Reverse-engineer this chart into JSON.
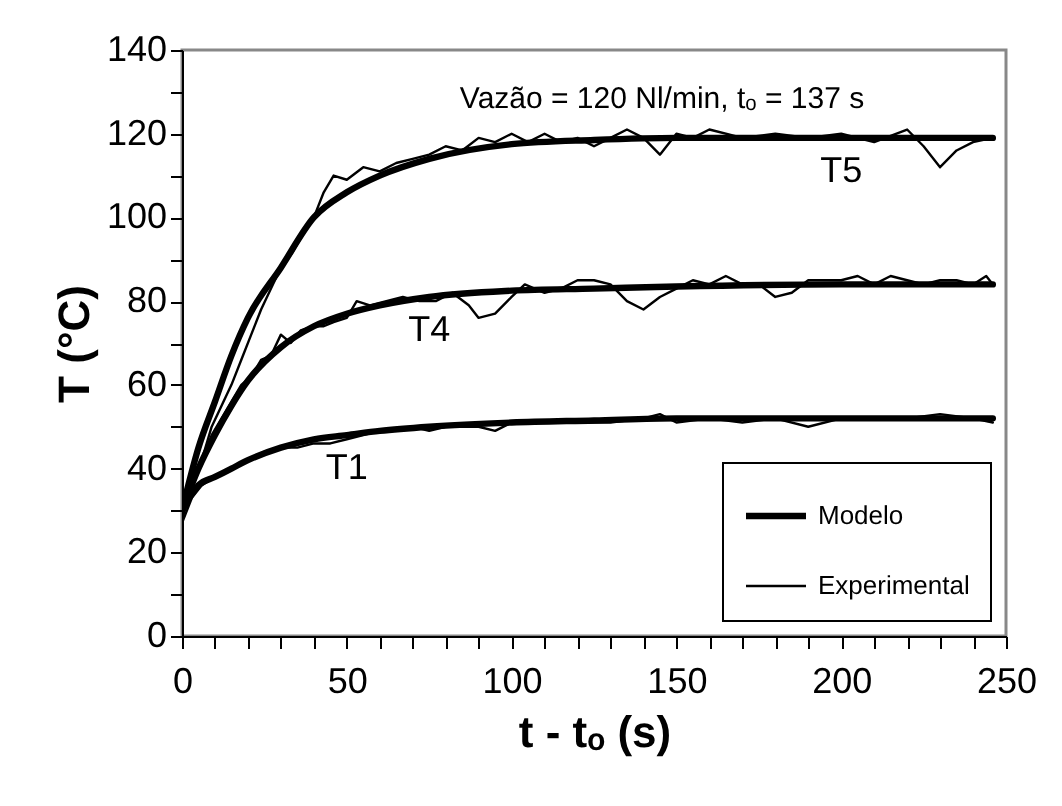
{
  "chart_data": {
    "type": "line",
    "xlabel": "t - tₒ (s)",
    "ylabel": "T (°C)",
    "xlim": [
      0,
      250
    ],
    "ylim": [
      0,
      140
    ],
    "xticks": [
      0,
      {
        "value": 10,
        "label": null
      },
      {
        "value": 20,
        "label": null
      },
      {
        "value": 30,
        "label": null
      },
      {
        "value": 40,
        "label": null
      },
      50,
      {
        "value": 60,
        "label": null
      },
      {
        "value": 70,
        "label": null
      },
      {
        "value": 80,
        "label": null
      },
      {
        "value": 90,
        "label": null
      },
      100,
      {
        "value": 110,
        "label": null
      },
      {
        "value": 120,
        "label": null
      },
      {
        "value": 130,
        "label": null
      },
      {
        "value": 140,
        "label": null
      },
      150,
      {
        "value": 160,
        "label": null
      },
      {
        "value": 170,
        "label": null
      },
      {
        "value": 180,
        "label": null
      },
      {
        "value": 190,
        "label": null
      },
      200,
      {
        "value": 210,
        "label": null
      },
      {
        "value": 220,
        "label": null
      },
      {
        "value": 230,
        "label": null
      },
      {
        "value": 240,
        "label": null
      },
      250
    ],
    "yticks": [
      0,
      {
        "value": 10,
        "label": null
      },
      20,
      {
        "value": 30,
        "label": null
      },
      40,
      {
        "value": 50,
        "label": null
      },
      60,
      {
        "value": 70,
        "label": null
      },
      80,
      {
        "value": 90,
        "label": null
      },
      100,
      {
        "value": 110,
        "label": null
      },
      120,
      {
        "value": 130,
        "label": null
      },
      140
    ],
    "grid": false,
    "legend": "bottom right",
    "marker": "none",
    "line_style": "solid",
    "annotations": [
      "Vazão = 120 Nl/min,  tₒ = 137 s",
      {
        "text": "T5",
        "x": 200,
        "y": 119
      },
      {
        "text": "T4",
        "x": 75,
        "y": 81
      },
      {
        "text": "T1",
        "x": 50,
        "y": 48
      }
    ],
    "series": [
      {
        "name": "Modelo",
        "color": "#000000",
        "x": [
          0,
          5,
          10,
          15,
          20,
          30,
          40,
          50,
          60,
          75,
          100,
          125,
          150,
          200,
          246
        ],
        "values": [
          30,
          45,
          56,
          67,
          76,
          88,
          100,
          106,
          110,
          114,
          117.5,
          118.5,
          119,
          119,
          119
        ]
      },
      {
        "color": "#000000",
        "x": [
          0,
          5,
          10,
          15,
          20,
          30,
          40,
          50,
          60,
          75,
          100,
          125,
          150,
          200,
          246
        ],
        "values": [
          30,
          40,
          48,
          55,
          61,
          69,
          74,
          77,
          79,
          81,
          82.5,
          83,
          83.5,
          84,
          84
        ]
      },
      {
        "color": "#000000",
        "x": [
          0,
          5,
          10,
          15,
          20,
          30,
          40,
          50,
          60,
          75,
          100,
          125,
          150,
          200,
          246
        ],
        "values": [
          30,
          36,
          38,
          40,
          42,
          45,
          47,
          48,
          49,
          50,
          51,
          51.5,
          52,
          52,
          52
        ]
      },
      {
        "name": "Experimental",
        "color": "#000000",
        "x": [
          0,
          3,
          6,
          9,
          12,
          15,
          18,
          21,
          24,
          27,
          30,
          33,
          36,
          40,
          43,
          46,
          50,
          55,
          60,
          65,
          70,
          75,
          80,
          85,
          90,
          95,
          100,
          105,
          110,
          115,
          120,
          125,
          130,
          135,
          140,
          145,
          150,
          155,
          160,
          170,
          180,
          190,
          200,
          210,
          220,
          225,
          230,
          235,
          240,
          246
        ],
        "values": [
          28,
          35,
          42,
          50,
          55,
          60,
          66,
          72,
          78,
          83,
          88,
          91,
          95,
          100,
          106,
          110,
          109,
          112,
          111,
          113,
          114,
          115,
          117,
          116,
          119,
          118,
          120,
          118,
          120,
          118,
          119,
          117,
          119,
          121,
          119,
          115,
          120,
          119,
          121,
          119,
          120,
          119,
          120,
          118,
          121,
          117,
          112,
          116,
          118,
          119
        ]
      },
      {
        "color": "#000000",
        "x": [
          0,
          3,
          6,
          9,
          12,
          15,
          18,
          21,
          24,
          27,
          30,
          33,
          36,
          40,
          43,
          46,
          50,
          53,
          57,
          62,
          67,
          72,
          77,
          82,
          87,
          90,
          95,
          100,
          104,
          110,
          115,
          120,
          125,
          130,
          135,
          140,
          145,
          150,
          155,
          160,
          165,
          170,
          175,
          180,
          185,
          190,
          200,
          205,
          210,
          215,
          220,
          225,
          230,
          235,
          240,
          244,
          246
        ],
        "values": [
          29,
          36,
          42,
          48,
          52,
          56,
          60,
          62,
          66,
          67,
          72,
          70,
          73,
          74,
          74,
          75,
          76,
          80,
          79,
          80,
          81,
          80,
          80,
          82,
          79,
          76,
          77,
          81,
          84,
          82,
          83,
          85,
          85,
          84,
          80,
          78,
          81,
          83,
          85,
          84,
          86,
          84,
          84,
          81,
          82,
          85,
          85,
          86,
          84,
          86,
          85,
          84,
          85,
          85,
          84,
          86,
          84
        ]
      },
      {
        "color": "#000000",
        "x": [
          0,
          3,
          6,
          10,
          15,
          20,
          25,
          30,
          35,
          40,
          45,
          50,
          55,
          60,
          65,
          70,
          75,
          80,
          85,
          90,
          95,
          100,
          110,
          120,
          130,
          140,
          145,
          150,
          160,
          170,
          180,
          190,
          200,
          210,
          220,
          230,
          240,
          246
        ],
        "values": [
          27,
          33,
          36,
          38,
          40,
          42,
          44,
          45,
          45,
          46,
          46,
          47,
          48,
          49,
          49,
          50,
          49,
          50,
          50,
          50,
          49,
          51,
          51,
          51,
          51,
          52,
          53,
          51,
          52,
          51,
          52,
          50,
          52,
          52,
          52,
          53,
          52,
          51
        ]
      }
    ]
  }
}
